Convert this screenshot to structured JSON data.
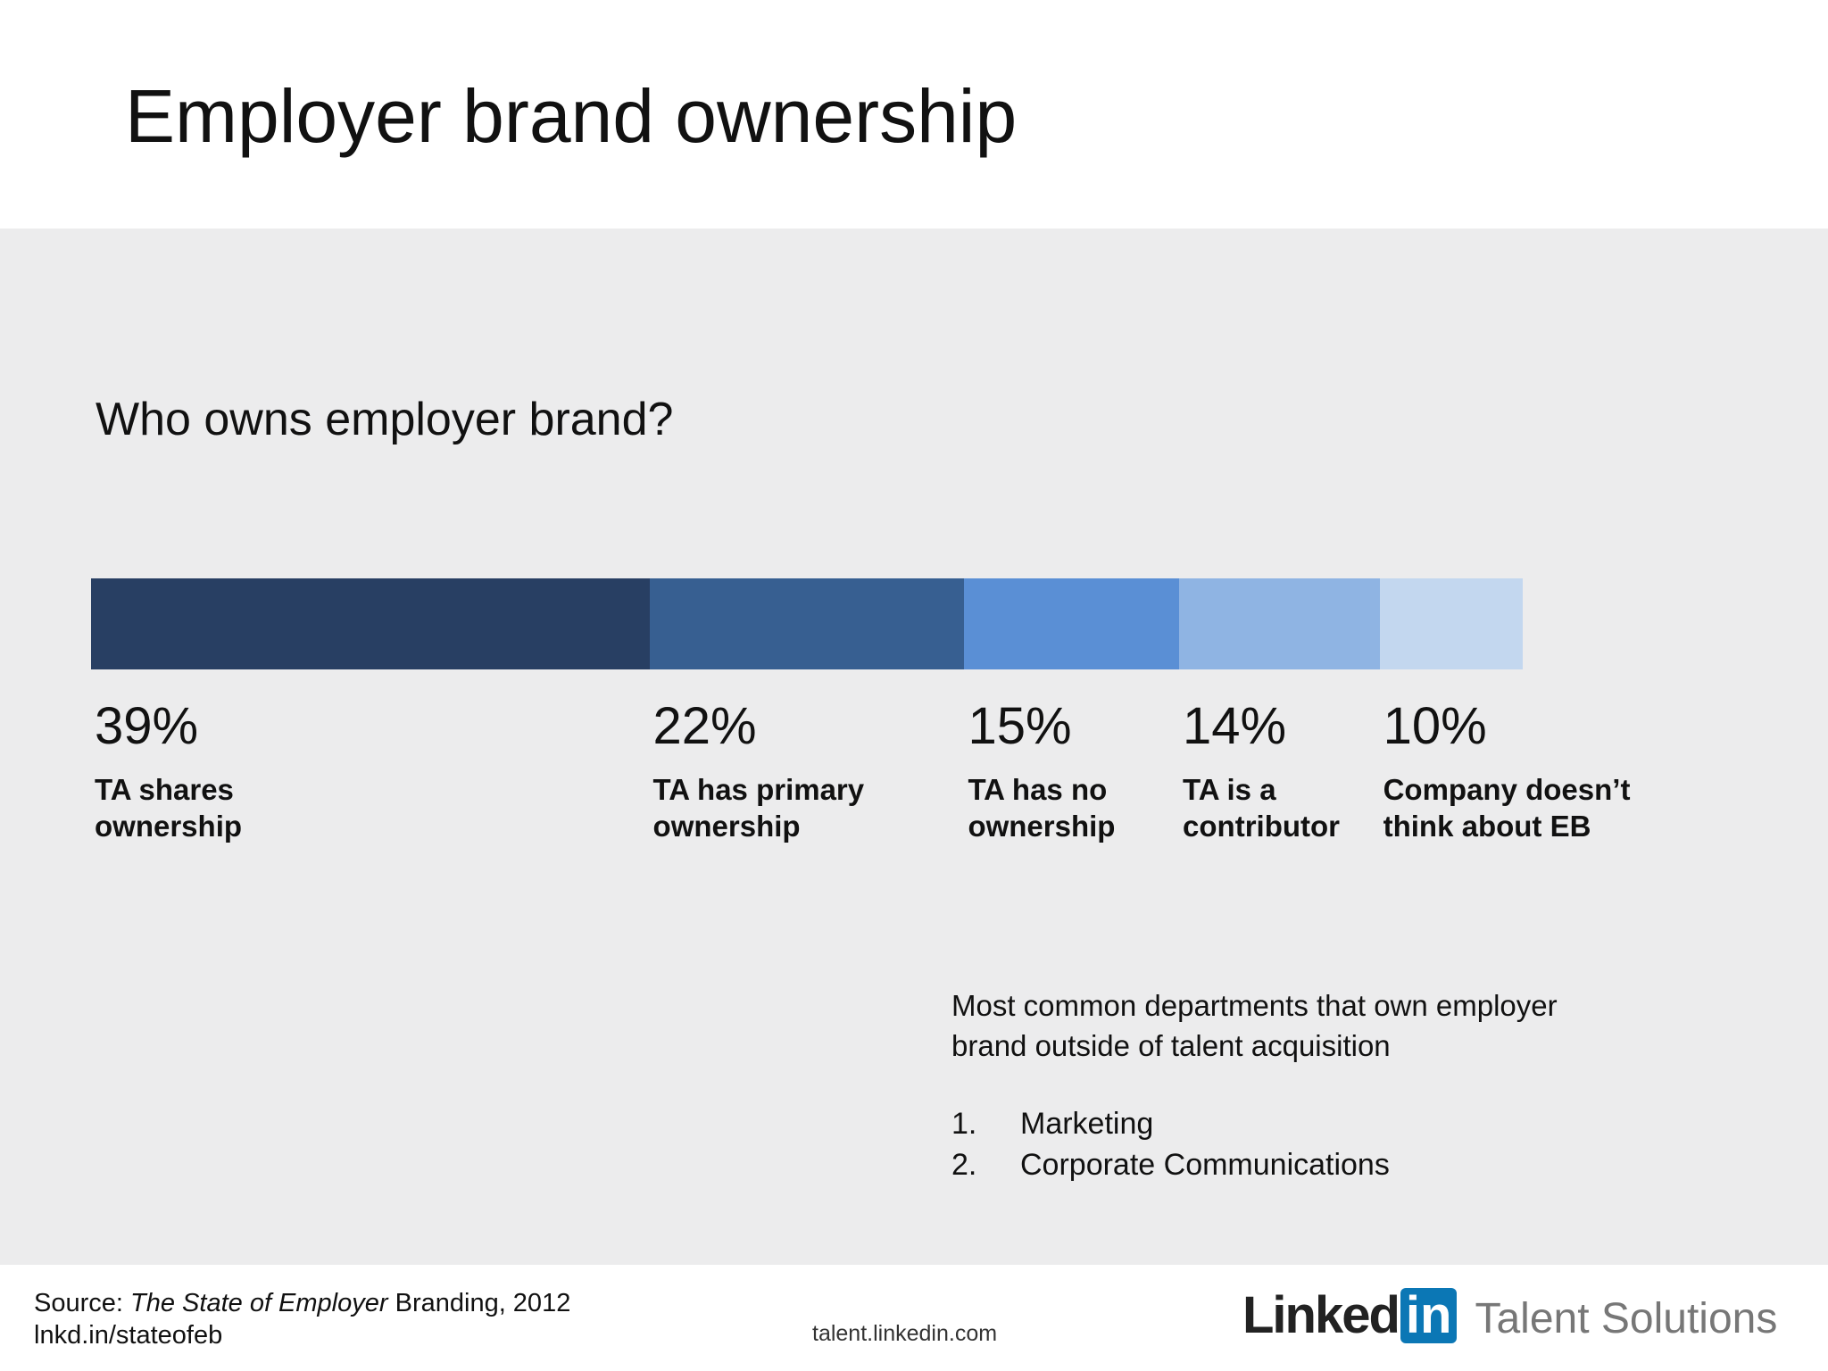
{
  "chart_data": {
    "type": "bar",
    "stacked": true,
    "orientation": "horizontal",
    "title": "Employer brand ownership",
    "subtitle": "Who owns employer brand?",
    "series": [
      {
        "name": "TA shares\nownership",
        "color": "#283f63",
        "values": [
          39
        ],
        "value_labels": [
          "39%"
        ]
      },
      {
        "name": "TA has primary\nownership",
        "color": "#375f91",
        "values": [
          22
        ],
        "value_labels": [
          "22%"
        ]
      },
      {
        "name": "TA has no\nownership",
        "color": "#5a8fd5",
        "values": [
          15
        ],
        "value_labels": [
          "15%"
        ]
      },
      {
        "name": "TA is a\ncontributor",
        "color": "#8fb4e3",
        "values": [
          14
        ],
        "value_labels": [
          "14%"
        ]
      },
      {
        "name": "Company doesn’t\nthink about EB",
        "color": "#c3d7ef",
        "values": [
          10
        ],
        "value_labels": [
          "10%"
        ]
      }
    ]
  },
  "note": {
    "text": "Most common departments that own employer\nbrand outside of talent acquisition",
    "items": [
      {
        "number": "1.",
        "text": "Marketing"
      },
      {
        "number": "2.",
        "text": "Corporate Communications"
      }
    ]
  },
  "footer": {
    "source": {
      "prefix": "Source:",
      "title": "The State of Employer",
      "suffix": "Branding, 2012"
    },
    "link": "lnkd.in/stateofeb",
    "url": "talent.linkedin.com",
    "logo": {
      "linked": "Linked",
      "in": "in",
      "product": "Talent Solutions"
    }
  }
}
